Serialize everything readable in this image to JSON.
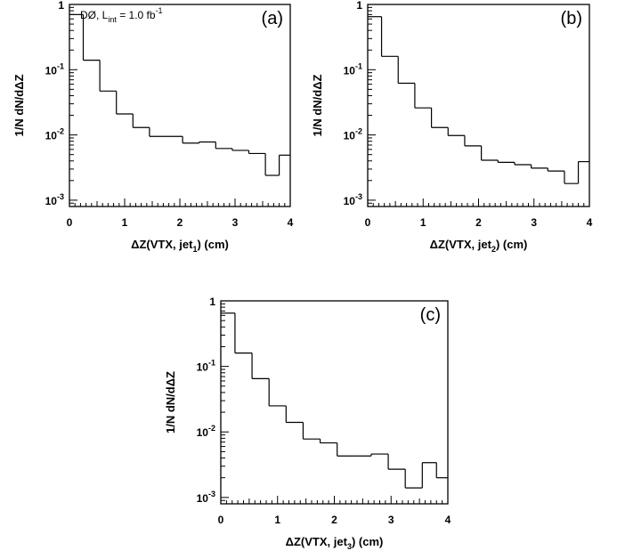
{
  "chart_data": [
    {
      "type": "histogram",
      "panel_label": "(a)",
      "annotation": {
        "experiment": "DØ, L",
        "sub": "int",
        "mid": " = 1.0 fb",
        "sup": "-1"
      },
      "xlabel": {
        "pre": "ΔZ(VTX, jet",
        "sub": "1",
        "post": ") (cm)"
      },
      "ylabel": "1/N dN/dΔZ",
      "xlim": [
        0,
        4
      ],
      "ylim": [
        0.0008,
        1
      ],
      "yscale": "log",
      "x_ticks": [
        "0",
        "1",
        "2",
        "3",
        "4"
      ],
      "y_ticks": [
        {
          "base": "10",
          "exp": "-3",
          "value": 0.001
        },
        {
          "base": "10",
          "exp": "-2",
          "value": 0.01
        },
        {
          "base": "10",
          "exp": "-1",
          "value": 0.1
        },
        {
          "base": "1",
          "exp": "",
          "value": 1
        }
      ],
      "bin_edges": [
        0,
        0.25,
        0.55,
        0.85,
        1.15,
        1.45,
        1.75,
        2.05,
        2.35,
        2.65,
        2.95,
        3.25,
        3.55,
        3.8,
        4.0
      ],
      "values": [
        0.7,
        0.14,
        0.047,
        0.021,
        0.013,
        0.0095,
        0.0095,
        0.0075,
        0.0078,
        0.0062,
        0.0058,
        0.0052,
        0.0024,
        0.0049
      ]
    },
    {
      "type": "histogram",
      "panel_label": "(b)",
      "xlabel": {
        "pre": "ΔZ(VTX, jet",
        "sub": "2",
        "post": ") (cm)"
      },
      "ylabel": "1/N dN/dΔZ",
      "xlim": [
        0,
        4
      ],
      "ylim": [
        0.0008,
        1
      ],
      "yscale": "log",
      "x_ticks": [
        "0",
        "1",
        "2",
        "3",
        "4"
      ],
      "y_ticks": [
        {
          "base": "10",
          "exp": "-3",
          "value": 0.001
        },
        {
          "base": "10",
          "exp": "-2",
          "value": 0.01
        },
        {
          "base": "10",
          "exp": "-1",
          "value": 0.1
        },
        {
          "base": "1",
          "exp": "",
          "value": 1
        }
      ],
      "bin_edges": [
        0,
        0.25,
        0.55,
        0.85,
        1.15,
        1.45,
        1.75,
        2.05,
        2.35,
        2.65,
        2.95,
        3.25,
        3.55,
        3.8,
        4.0
      ],
      "values": [
        0.65,
        0.16,
        0.062,
        0.026,
        0.013,
        0.0098,
        0.0068,
        0.0041,
        0.0038,
        0.0035,
        0.0031,
        0.0028,
        0.0018,
        0.0039
      ]
    },
    {
      "type": "histogram",
      "panel_label": "(c)",
      "xlabel": {
        "pre": "ΔZ(VTX, jet",
        "sub": "3",
        "post": ") (cm)"
      },
      "ylabel": "1/N dN/dΔZ",
      "xlim": [
        0,
        4
      ],
      "ylim": [
        0.0008,
        1
      ],
      "yscale": "log",
      "x_ticks": [
        "0",
        "1",
        "2",
        "3",
        "4"
      ],
      "y_ticks": [
        {
          "base": "10",
          "exp": "-3",
          "value": 0.001
        },
        {
          "base": "10",
          "exp": "-2",
          "value": 0.01
        },
        {
          "base": "10",
          "exp": "-1",
          "value": 0.1
        },
        {
          "base": "1",
          "exp": "",
          "value": 1
        }
      ],
      "bin_edges": [
        0,
        0.25,
        0.55,
        0.85,
        1.15,
        1.45,
        1.75,
        2.05,
        2.35,
        2.65,
        2.95,
        3.25,
        3.55,
        3.8,
        4.0
      ],
      "values": [
        0.65,
        0.16,
        0.065,
        0.025,
        0.014,
        0.0078,
        0.0068,
        0.0043,
        0.0043,
        0.0046,
        0.0027,
        0.0014,
        0.0034,
        0.002
      ]
    }
  ]
}
